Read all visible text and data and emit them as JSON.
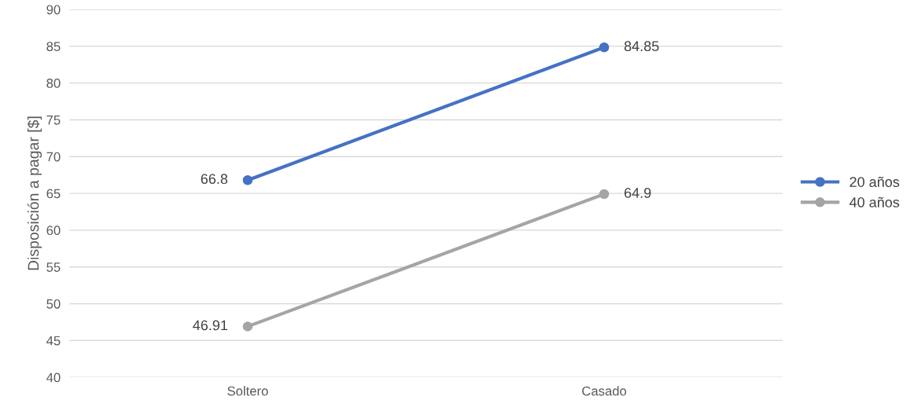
{
  "chart_data": {
    "type": "line",
    "ylabel": "Disposición a pagar [$]",
    "categories": [
      "Soltero",
      "Casado"
    ],
    "series": [
      {
        "name": "20 años",
        "color": "#4472c4",
        "values": [
          66.8,
          84.85
        ]
      },
      {
        "name": "40 años",
        "color": "#a5a5a5",
        "values": [
          46.91,
          64.9
        ]
      }
    ],
    "ylim": [
      40,
      90
    ],
    "yticks": [
      40,
      45,
      50,
      55,
      60,
      65,
      70,
      75,
      80,
      85,
      90
    ],
    "grid": "y",
    "legend": "right",
    "marker": "circle",
    "line_style": "solid",
    "data_labels": true
  }
}
